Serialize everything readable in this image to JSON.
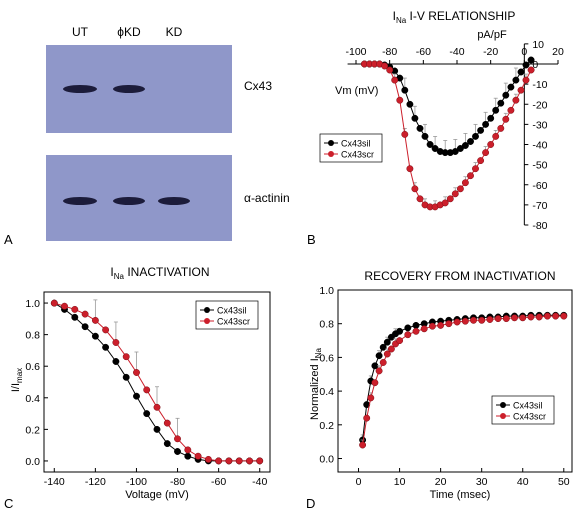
{
  "colors": {
    "black_series": "#000000",
    "red_series": "#cc1f2b",
    "blot_bg": "#8f97c9",
    "band": "#1c1c3a"
  },
  "panels": {
    "A": {
      "letter": "A",
      "lanes": [
        "UT",
        "ϕKD",
        "KD"
      ],
      "blots": [
        {
          "label": "Cx43",
          "bands_present": [
            true,
            true,
            false
          ]
        },
        {
          "label": "α-actinin",
          "bands_present": [
            true,
            true,
            true
          ]
        }
      ]
    },
    "B": {
      "letter": "B"
    },
    "C": {
      "letter": "C"
    },
    "D": {
      "letter": "D"
    }
  },
  "chart_data": [
    {
      "id": "B",
      "type": "line",
      "title_main": "I",
      "title_sub": "Na",
      "title_rest": " I-V RELATIONSHIP",
      "xlabel": "Vm (mV)",
      "ylabel": "pA/pF",
      "xlim": [
        -110,
        20
      ],
      "ylim": [
        -80,
        10
      ],
      "xticks": [
        -100,
        -80,
        -60,
        -40,
        -20,
        0,
        20
      ],
      "yticks": [
        10,
        0,
        -10,
        -20,
        -30,
        -40,
        -50,
        -60,
        -70,
        -80
      ],
      "legend": "left-middle",
      "series": [
        {
          "name": "Cx43sil",
          "color": "#000000",
          "x": [
            -95,
            -92,
            -89,
            -86,
            -83,
            -80,
            -77,
            -74,
            -71,
            -68,
            -65,
            -62,
            -59,
            -56,
            -53,
            -50,
            -47,
            -44,
            -41,
            -38,
            -35,
            -32,
            -29,
            -26,
            -23,
            -20,
            -17,
            -14,
            -11,
            -8,
            -5,
            -2,
            1,
            4
          ],
          "y": [
            0,
            0,
            0,
            0,
            -0.5,
            -1.5,
            -3.5,
            -7,
            -13,
            -20,
            -27,
            -32,
            -36,
            -40,
            -42,
            -43.5,
            -44,
            -44,
            -43.5,
            -42,
            -40.5,
            -38.5,
            -36,
            -33,
            -30,
            -27,
            -23,
            -19.5,
            -15.5,
            -11.5,
            -8,
            -4,
            -0.5,
            2
          ]
        },
        {
          "name": "Cx43scr",
          "color": "#cc1f2b",
          "x": [
            -95,
            -92,
            -89,
            -86,
            -83,
            -80,
            -77,
            -74,
            -71,
            -68,
            -65,
            -62,
            -59,
            -56,
            -53,
            -50,
            -47,
            -44,
            -41,
            -38,
            -35,
            -32,
            -29,
            -26,
            -23,
            -20,
            -17,
            -14,
            -11,
            -8,
            -5,
            -2,
            1,
            4
          ],
          "y": [
            0,
            0,
            0,
            0,
            -1,
            -3,
            -8,
            -18,
            -35,
            -52,
            -62,
            -67,
            -70,
            -71,
            -71,
            -70,
            -69,
            -67,
            -64.5,
            -62,
            -59,
            -55.5,
            -52,
            -48,
            -44,
            -40,
            -36,
            -32,
            -27.5,
            -23,
            -18,
            -13,
            -8,
            -3
          ]
        }
      ]
    },
    {
      "id": "C",
      "type": "line",
      "title_main": "I",
      "title_sub": "Na",
      "title_rest": " INACTIVATION",
      "xlabel": "Voltage (mV)",
      "ylabel_main": "I/I",
      "ylabel_sub": "max",
      "xlim": [
        -145,
        -35
      ],
      "ylim": [
        -0.07,
        1.07
      ],
      "xticks": [
        -140,
        -120,
        -100,
        -80,
        -60,
        -40
      ],
      "yticks": [
        0.0,
        0.2,
        0.4,
        0.6,
        0.8,
        1.0
      ],
      "legend": "top-right",
      "series": [
        {
          "name": "Cx43sil",
          "color": "#000000",
          "x": [
            -140,
            -135,
            -130,
            -125,
            -120,
            -115,
            -110,
            -105,
            -100,
            -95,
            -90,
            -85,
            -80,
            -75,
            -70,
            -65,
            -60,
            -55,
            -50,
            -45,
            -40
          ],
          "y": [
            1.0,
            0.96,
            0.91,
            0.85,
            0.79,
            0.72,
            0.63,
            0.53,
            0.41,
            0.3,
            0.2,
            0.11,
            0.06,
            0.03,
            0.01,
            0.0,
            0.0,
            0.0,
            0.0,
            0.0,
            0.0
          ]
        },
        {
          "name": "Cx43scr",
          "color": "#cc1f2b",
          "x": [
            -140,
            -135,
            -130,
            -125,
            -120,
            -115,
            -110,
            -105,
            -100,
            -95,
            -90,
            -85,
            -80,
            -75,
            -70,
            -65,
            -60,
            -55,
            -50,
            -45,
            -40
          ],
          "y": [
            1.0,
            0.98,
            0.96,
            0.93,
            0.89,
            0.83,
            0.75,
            0.66,
            0.56,
            0.45,
            0.34,
            0.24,
            0.14,
            0.07,
            0.03,
            0.01,
            0.0,
            0.0,
            0.0,
            0.0,
            0.0
          ]
        }
      ]
    },
    {
      "id": "D",
      "type": "line",
      "title": "RECOVERY FROM INACTIVATION",
      "xlabel": "Time (msec)",
      "ylabel_main": "Normalized I",
      "ylabel_sub": "Na",
      "xlim": [
        -5,
        52
      ],
      "ylim": [
        -0.08,
        1.0
      ],
      "xticks": [
        0,
        10,
        20,
        30,
        40,
        50
      ],
      "yticks": [
        0.0,
        0.2,
        0.4,
        0.6,
        0.8,
        1.0
      ],
      "legend": "bottom-right",
      "series": [
        {
          "name": "Cx43sil",
          "color": "#000000",
          "x": [
            1,
            2,
            3,
            4,
            5,
            6,
            7,
            8,
            9,
            10,
            12,
            14,
            16,
            18,
            20,
            22,
            24,
            26,
            28,
            30,
            32,
            34,
            36,
            38,
            40,
            42,
            44,
            46,
            48,
            50
          ],
          "y": [
            0.11,
            0.32,
            0.46,
            0.55,
            0.61,
            0.66,
            0.69,
            0.72,
            0.74,
            0.755,
            0.775,
            0.79,
            0.8,
            0.81,
            0.815,
            0.82,
            0.825,
            0.83,
            0.835,
            0.835,
            0.84,
            0.84,
            0.845,
            0.845,
            0.845,
            0.85,
            0.85,
            0.85,
            0.85,
            0.85
          ]
        },
        {
          "name": "Cx43scr",
          "color": "#cc1f2b",
          "x": [
            1,
            2,
            3,
            4,
            5,
            6,
            7,
            8,
            9,
            10,
            12,
            14,
            16,
            18,
            20,
            22,
            24,
            26,
            28,
            30,
            32,
            34,
            36,
            38,
            40,
            42,
            44,
            46,
            48,
            50
          ],
          "y": [
            0.08,
            0.24,
            0.36,
            0.45,
            0.52,
            0.57,
            0.62,
            0.65,
            0.68,
            0.7,
            0.735,
            0.755,
            0.77,
            0.785,
            0.79,
            0.8,
            0.81,
            0.815,
            0.82,
            0.82,
            0.825,
            0.83,
            0.83,
            0.835,
            0.835,
            0.84,
            0.84,
            0.845,
            0.845,
            0.845
          ]
        }
      ]
    }
  ]
}
